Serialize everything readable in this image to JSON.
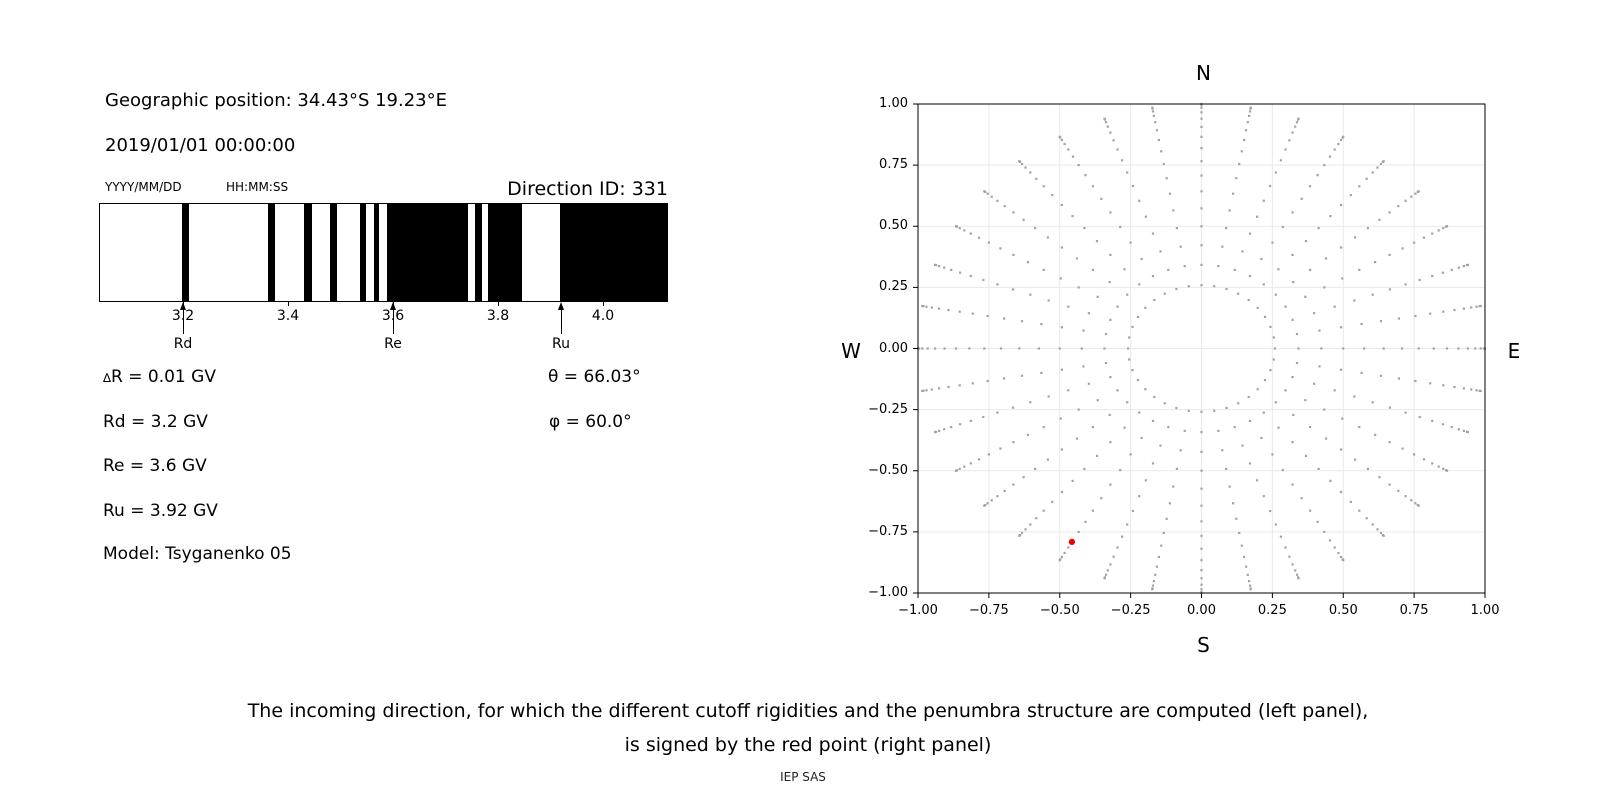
{
  "info_panel": {
    "geographic_position": "Geographic position: 34.43°S 19.23°E",
    "datetime": "2019/01/01 00:00:00",
    "date_format": "YYYY/MM/DD",
    "time_format": "HH:MM:SS",
    "direction_id": "Direction ID: 331",
    "delta_r_symbol": "∆",
    "delta_r_text": "R = 0.01 GV",
    "rd": "Rd = 3.2 GV",
    "re": "Re = 3.6 GV",
    "ru": "Ru = 3.92 GV",
    "model": "Model: Tsyganenko 05",
    "theta": "θ = 66.03°",
    "phi": "φ = 60.0°"
  },
  "caption": {
    "line1": "The incoming direction, for which the different cutoff rigidities and the penumbra structure are computed (left panel),",
    "line2": "is signed by the red point (right panel)",
    "credit": "IEP SAS"
  },
  "chart_data": [
    {
      "type": "bar",
      "name": "penumbra-structure-barcode",
      "description": "Cosmic-ray penumbra structure: black bands mark allowed rigidity intervals (GV), white is forbidden",
      "xlim": [
        3.04,
        4.12
      ],
      "xtick_values": [
        3.2,
        3.4,
        3.6,
        3.8,
        4.0
      ],
      "xtick_labels": [
        "3.2",
        "3.4",
        "3.6",
        "3.8",
        "4.0"
      ],
      "band_color": "#000000",
      "bands_gv": [
        [
          3.197,
          3.209
        ],
        [
          3.36,
          3.373
        ],
        [
          3.428,
          3.444
        ],
        [
          3.478,
          3.492
        ],
        [
          3.535,
          3.546
        ],
        [
          3.561,
          3.571
        ],
        [
          3.586,
          3.742
        ],
        [
          3.754,
          3.768
        ],
        [
          3.779,
          3.844
        ],
        [
          3.916,
          4.12
        ]
      ],
      "arrows": [
        {
          "label": "Rd",
          "value": 3.2
        },
        {
          "label": "Re",
          "value": 3.6
        },
        {
          "label": "Ru",
          "value": 3.92
        }
      ]
    },
    {
      "type": "scatter",
      "name": "incoming-direction-sky-map",
      "title_top": "N",
      "title_bottom": "S",
      "title_left": "W",
      "title_right": "E",
      "xlim": [
        -1,
        1
      ],
      "ylim": [
        -1,
        1
      ],
      "grid": true,
      "xtick_values": [
        -1.0,
        -0.75,
        -0.5,
        -0.25,
        0.0,
        0.25,
        0.5,
        0.75,
        1.0
      ],
      "xtick_labels": [
        "−1.00",
        "−0.75",
        "−0.50",
        "−0.25",
        "0.00",
        "0.25",
        "0.50",
        "0.75",
        "1.00"
      ],
      "ytick_values": [
        1.0,
        0.75,
        0.5,
        0.25,
        0.0,
        -0.25,
        -0.5,
        -0.75,
        -1.0
      ],
      "ytick_labels": [
        "1.00",
        "0.75",
        "0.50",
        "0.25",
        "0.00",
        "−0.25",
        "−0.50",
        "−0.75",
        "−1.00"
      ],
      "dot_color": "#a2a2a2",
      "grid_color": "#e9e9e9",
      "directions_grid": {
        "azimuth_deg_start": 0,
        "azimuth_deg_step": 10,
        "azimuth_count": 36,
        "zenith_deg_start": 15,
        "zenith_deg_step": 5,
        "zenith_count": 16,
        "radius_rule": "r = sin(zenith); x = r·sin(azimuth); y = r·cos(azimuth)"
      },
      "red_point": {
        "x": -0.457,
        "y": -0.791,
        "theta_deg": 66.03,
        "phi_deg": 60.0,
        "color": "#ee0000"
      }
    }
  ]
}
